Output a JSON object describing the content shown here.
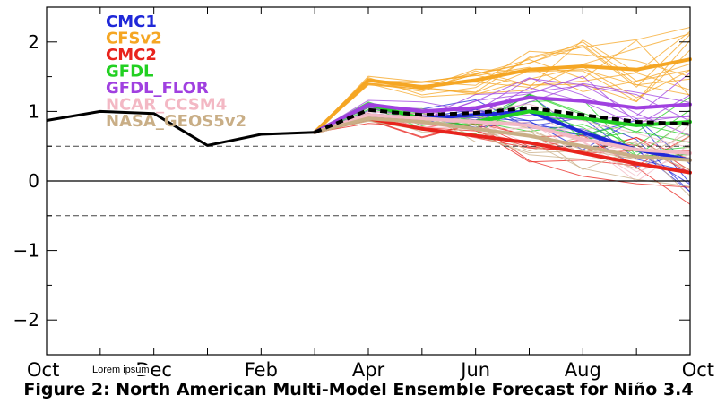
{
  "caption": "Figure 2: North American Multi-Model Ensemble Forecast for Niño 3.4",
  "overlay_note": "Lorem ipsum",
  "chart_data": {
    "type": "line",
    "title": "",
    "xlabel": "",
    "ylabel": "",
    "x_tick_labels": [
      "Oct",
      "Dec",
      "Feb",
      "Apr",
      "Jun",
      "Aug",
      "Oct"
    ],
    "y_tick_labels": [
      "−2",
      "−1",
      "0",
      "1",
      "2"
    ],
    "ylim": [
      -2.5,
      2.5
    ],
    "reference_lines": {
      "solid": [
        0
      ],
      "dashed": [
        0.5,
        -0.5
      ]
    },
    "legend_placement": "top-left",
    "legend": [
      {
        "name": "CMC1",
        "color": "#1f28d8"
      },
      {
        "name": "CFSv2",
        "color": "#f5a623"
      },
      {
        "name": "CMC2",
        "color": "#e8231c"
      },
      {
        "name": "GFDL",
        "color": "#22d022"
      },
      {
        "name": "GFDL_FLOR",
        "color": "#a040e0"
      },
      {
        "name": "NCAR_CCSM4",
        "color": "#f3b8c4"
      },
      {
        "name": "NASA_GEOS5v2",
        "color": "#c9ae86"
      }
    ],
    "observed": {
      "x": [
        0,
        1,
        2,
        3,
        4,
        5
      ],
      "y": [
        0.87,
        1.0,
        0.97,
        0.51,
        0.67,
        0.7
      ],
      "color": "#000000"
    },
    "ensemble_mean": {
      "x": [
        5,
        6,
        7,
        8,
        9,
        10,
        11,
        12
      ],
      "y": [
        0.7,
        1.02,
        0.95,
        0.98,
        1.05,
        0.95,
        0.85,
        0.82
      ],
      "color": "#000000",
      "style": "dashed"
    },
    "series": [
      {
        "name": "CMC1",
        "x": [
          5,
          6,
          7,
          8,
          9,
          10,
          11,
          12
        ],
        "y": [
          0.7,
          0.95,
          0.9,
          0.95,
          1.0,
          0.7,
          0.45,
          0.3
        ]
      },
      {
        "name": "CFSv2",
        "x": [
          5,
          6,
          7,
          8,
          9,
          10,
          11,
          12
        ],
        "y": [
          0.7,
          1.45,
          1.35,
          1.45,
          1.6,
          1.65,
          1.6,
          1.75
        ]
      },
      {
        "name": "CMC2",
        "x": [
          5,
          6,
          7,
          8,
          9,
          10,
          11,
          12
        ],
        "y": [
          0.7,
          0.9,
          0.75,
          0.65,
          0.55,
          0.4,
          0.25,
          0.12
        ]
      },
      {
        "name": "GFDL",
        "x": [
          5,
          6,
          7,
          8,
          9,
          10,
          11,
          12
        ],
        "y": [
          0.7,
          1.1,
          0.9,
          0.85,
          1.0,
          0.9,
          0.8,
          0.85
        ]
      },
      {
        "name": "GFDL_FLOR",
        "x": [
          5,
          6,
          7,
          8,
          9,
          10,
          11,
          12
        ],
        "y": [
          0.7,
          1.1,
          1.0,
          1.05,
          1.2,
          1.15,
          1.05,
          1.1
        ]
      },
      {
        "name": "NCAR_CCSM4",
        "x": [
          5,
          6,
          7,
          8,
          9,
          10,
          11,
          12
        ],
        "y": [
          0.7,
          0.95,
          0.9,
          0.85,
          0.8,
          0.6,
          0.45,
          0.4
        ]
      },
      {
        "name": "NASA_GEOS5v2",
        "x": [
          5,
          6,
          7,
          8,
          9,
          10,
          11,
          12
        ],
        "y": [
          0.7,
          0.9,
          0.85,
          0.75,
          0.65,
          0.5,
          0.35,
          0.3
        ]
      }
    ]
  }
}
